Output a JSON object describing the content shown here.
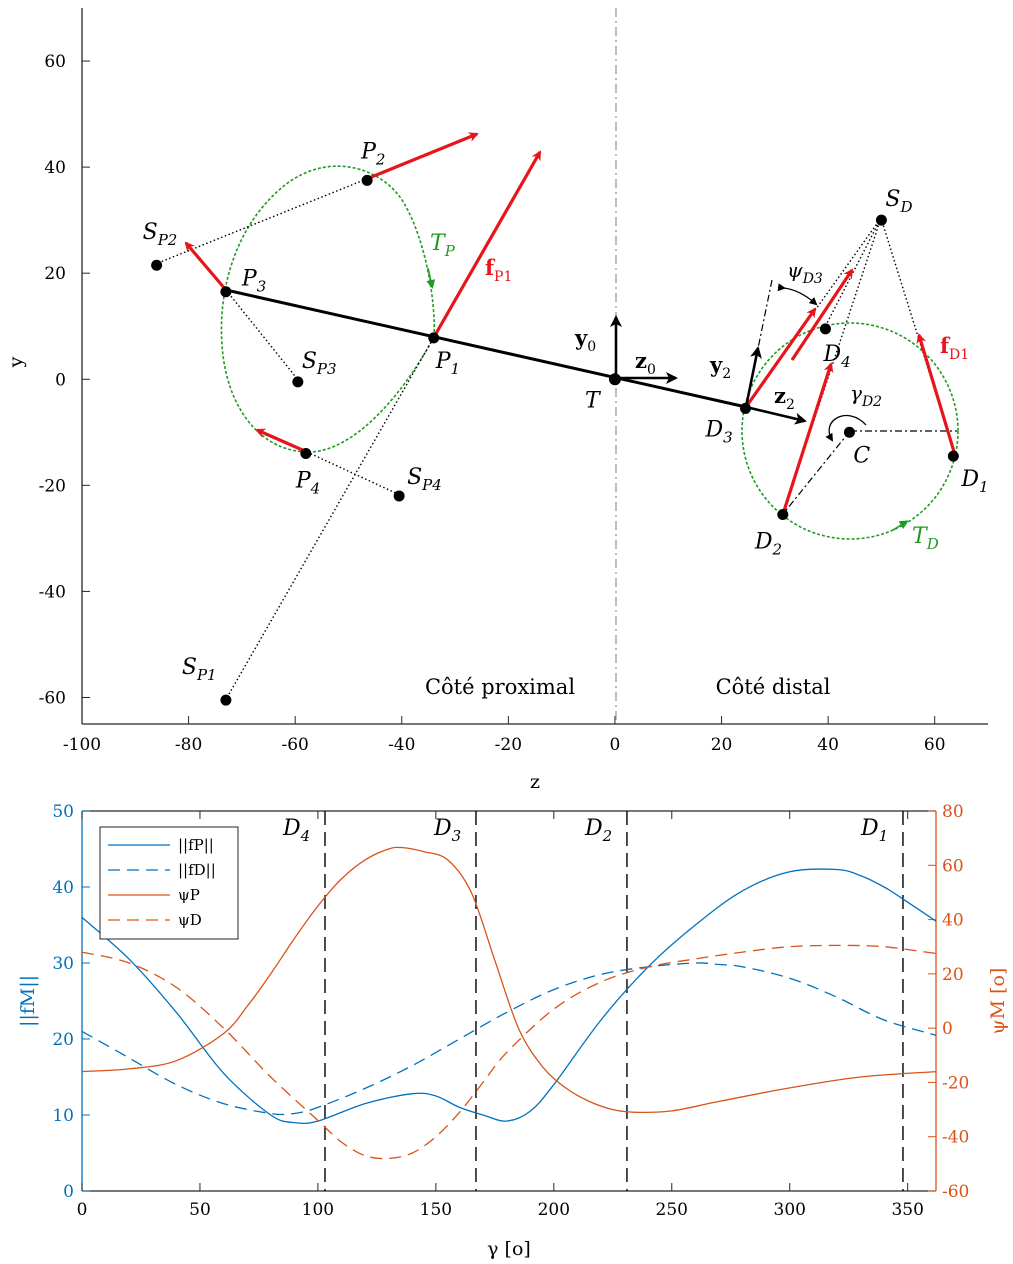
{
  "chart_data": [
    {
      "type": "scatter",
      "xlabel": "z",
      "ylabel": "y",
      "xlim": [
        -100,
        70
      ],
      "ylim": [
        -65,
        70
      ],
      "xticks": [
        -100,
        -80,
        -60,
        -40,
        -20,
        0,
        20,
        40,
        60
      ],
      "yticks": [
        60,
        40,
        20,
        0,
        -20,
        -40,
        -60
      ],
      "grid": false,
      "regions": [
        "Côté proximal",
        "Côté distal"
      ],
      "points": [
        {
          "name": "P1",
          "label": "P",
          "sub": "1",
          "z": -34,
          "y": 7.8
        },
        {
          "name": "P2",
          "label": "P",
          "sub": "2",
          "z": -46.5,
          "y": 37.5
        },
        {
          "name": "P3",
          "label": "P",
          "sub": "3",
          "z": -73,
          "y": 16.5
        },
        {
          "name": "P4",
          "label": "P",
          "sub": "4",
          "z": -58,
          "y": -14
        },
        {
          "name": "SP1",
          "label": "S",
          "sub": "P1",
          "z": -73,
          "y": -60.5
        },
        {
          "name": "SP2",
          "label": "S",
          "sub": "P2",
          "z": -86,
          "y": 21.5
        },
        {
          "name": "SP3",
          "label": "S",
          "sub": "P3",
          "z": -59.5,
          "y": -0.5
        },
        {
          "name": "SP4",
          "label": "S",
          "sub": "P4",
          "z": -40.5,
          "y": -22
        },
        {
          "name": "T",
          "label": "T",
          "sub": "",
          "z": 0,
          "y": 0
        },
        {
          "name": "D1",
          "label": "D",
          "sub": "1",
          "z": 63.5,
          "y": -14.5
        },
        {
          "name": "D2",
          "label": "D",
          "sub": "2",
          "z": 31.5,
          "y": -25.5
        },
        {
          "name": "D3",
          "label": "D",
          "sub": "3",
          "z": 24.5,
          "y": -5.5
        },
        {
          "name": "D4",
          "label": "D",
          "sub": "4",
          "z": 39.5,
          "y": 9.5
        },
        {
          "name": "SD",
          "label": "S",
          "sub": "D",
          "z": 50,
          "y": 30
        },
        {
          "name": "C",
          "label": "C",
          "sub": "",
          "z": 44,
          "y": -10
        }
      ],
      "force_labels": [
        {
          "name": "fP1",
          "label": "f",
          "sub": "P1",
          "color": "#e8141b"
        },
        {
          "name": "fD1",
          "label": "f",
          "sub": "D1",
          "color": "#e8141b"
        }
      ],
      "trajectory_labels": [
        {
          "name": "TP",
          "label": "T",
          "sub": "P",
          "color": "#1f9b1f"
        },
        {
          "name": "TD",
          "label": "T",
          "sub": "D",
          "color": "#1f9b1f"
        }
      ],
      "frame_labels": [
        "y",
        "0",
        "z",
        "0",
        "y",
        "2",
        "z",
        "2"
      ],
      "angle_labels": [
        {
          "name": "psiD3",
          "label": "ψ",
          "sub": "D3"
        },
        {
          "name": "gammaD2",
          "label": "γ",
          "sub": "D2"
        }
      ]
    },
    {
      "type": "line",
      "xlabel": "γ [o]",
      "ylabel": "||fM||",
      "y2label": "ψM [o]",
      "xlim": [
        0,
        362
      ],
      "ylim": [
        0,
        50
      ],
      "y2lim": [
        -60,
        80
      ],
      "xticks": [
        0,
        50,
        100,
        150,
        200,
        250,
        300,
        350
      ],
      "yticks": [
        0,
        10,
        20,
        30,
        40,
        50
      ],
      "y2ticks": [
        -60,
        -40,
        -20,
        0,
        20,
        40,
        60,
        80
      ],
      "legend_position": "top-left",
      "vlines": [
        {
          "name": "D4",
          "label": "D",
          "sub": "4",
          "x": 103
        },
        {
          "name": "D3",
          "label": "D",
          "sub": "3",
          "x": 167
        },
        {
          "name": "D2",
          "label": "D",
          "sub": "2",
          "x": 231
        },
        {
          "name": "D1",
          "label": "D",
          "sub": "1",
          "x": 348
        }
      ],
      "series": [
        {
          "name": "||fP||",
          "axis": "left",
          "color": "#0072bd",
          "dash": false,
          "x": [
            0,
            20,
            40,
            60,
            80,
            90,
            100,
            120,
            140,
            150,
            160,
            170,
            180,
            190,
            200,
            220,
            240,
            260,
            280,
            300,
            320,
            330,
            340,
            350,
            362
          ],
          "y": [
            36,
            30.5,
            23.5,
            15.5,
            10,
            9,
            9.2,
            11.5,
            12.8,
            12.5,
            11,
            10,
            9.2,
            10.5,
            14,
            22.5,
            29.5,
            35,
            39.5,
            42,
            42.3,
            41.5,
            40,
            38,
            35.5
          ]
        },
        {
          "name": "||fD||",
          "axis": "left",
          "color": "#0072bd",
          "dash": true,
          "x": [
            0,
            20,
            40,
            60,
            80,
            90,
            100,
            120,
            140,
            160,
            180,
            200,
            220,
            240,
            260,
            270,
            280,
            300,
            320,
            340,
            362
          ],
          "y": [
            21,
            17.5,
            14,
            11.5,
            10.2,
            10.2,
            11,
            13.5,
            16.5,
            20,
            23.5,
            26.5,
            28.5,
            29.5,
            30,
            29.8,
            29.5,
            28,
            25.5,
            22.5,
            20.5
          ]
        },
        {
          "name": "ψP",
          "axis": "right",
          "color": "#d95319",
          "dash": false,
          "x": [
            0,
            20,
            40,
            60,
            70,
            80,
            90,
            100,
            110,
            120,
            130,
            136,
            145,
            155,
            165,
            175,
            185,
            195,
            205,
            215,
            225,
            235,
            250,
            270,
            300,
            330,
            362
          ],
          "y": [
            -16,
            -15,
            -12,
            -2,
            8,
            20,
            33,
            45,
            55,
            62,
            66,
            66.5,
            65,
            62,
            50,
            25,
            0,
            -14,
            -22,
            -27,
            -30,
            -31,
            -30.5,
            -27,
            -22,
            -18,
            -16
          ]
        },
        {
          "name": "ψD",
          "axis": "right",
          "color": "#d95319",
          "dash": true,
          "x": [
            0,
            20,
            40,
            60,
            80,
            100,
            110,
            120,
            130,
            140,
            150,
            160,
            170,
            180,
            200,
            220,
            240,
            260,
            280,
            300,
            320,
            340,
            362
          ],
          "y": [
            28,
            24,
            15,
            0,
            -18,
            -34,
            -42,
            -47,
            -48,
            -46,
            -40,
            -31,
            -20,
            -9,
            7,
            17,
            22.5,
            25.5,
            28,
            30,
            30.5,
            30,
            27.5
          ]
        }
      ]
    }
  ],
  "colors": {
    "axis": "#262626",
    "force": "#e8141b",
    "trajectory": "#1f9b1f",
    "left_axis": "#0072bd",
    "right_axis": "#d95319"
  }
}
